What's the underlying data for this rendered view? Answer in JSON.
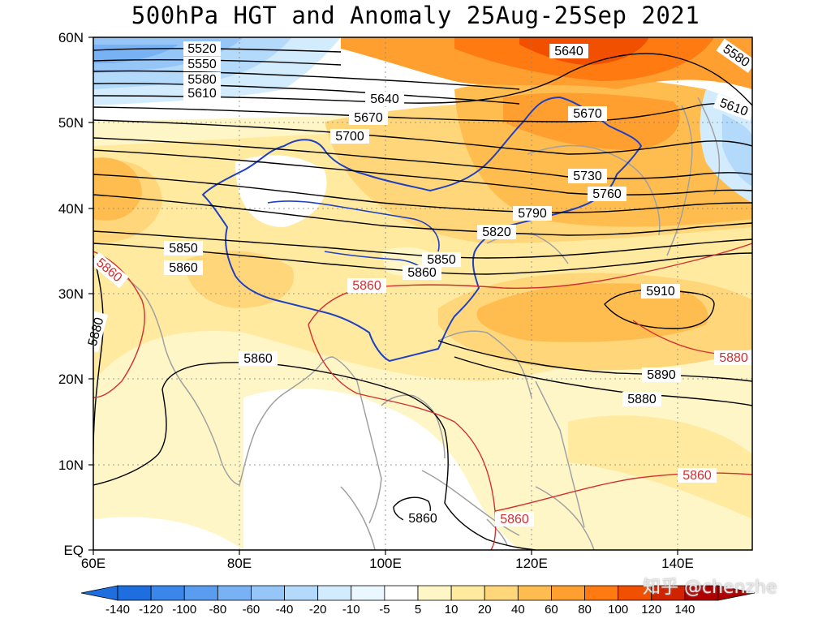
{
  "title": "500hPa HGT and Anomaly 25Aug-25Sep 2021",
  "watermark": "知乎 @chenzhe",
  "axes": {
    "lon_labels": [
      "60E",
      "80E",
      "100E",
      "120E",
      "140E"
    ],
    "lat_labels": [
      "60N",
      "50N",
      "40N",
      "30N",
      "20N",
      "10N",
      "EQ"
    ]
  },
  "colorbar": {
    "labels": [
      "-140",
      "-120",
      "-100",
      "-80",
      "-60",
      "-40",
      "-20",
      "-10",
      "-5",
      "5",
      "10",
      "20",
      "40",
      "60",
      "80",
      "100",
      "120",
      "140"
    ],
    "colors": [
      "#1e6ee0",
      "#3a86ea",
      "#5a9df0",
      "#78b2f4",
      "#96c6f8",
      "#b4dafb",
      "#d2ecfd",
      "#eaf7ff",
      "#ffffff",
      "#fff6c8",
      "#ffeaa0",
      "#ffd67a",
      "#ffbd50",
      "#ff9f30",
      "#ff7a10",
      "#f05000",
      "#d02400",
      "#b00000"
    ]
  },
  "contours_black": [
    "5520",
    "5550",
    "5580",
    "5610",
    "5640",
    "5670",
    "5700",
    "5730",
    "5760",
    "5790",
    "5820",
    "5850",
    "5860",
    "5880",
    "5890",
    "5910"
  ],
  "contour_labels": {
    "c5520": "5520",
    "c5550": "5550",
    "c5580a": "5580",
    "c5610a": "5610",
    "c5640a": "5640",
    "c5670a": "5670",
    "c5700": "5700",
    "c5640b": "5640",
    "c5670b": "5670",
    "c5730": "5730",
    "c5760": "5760",
    "c5790": "5790",
    "c5820": "5820",
    "c5850a": "5850",
    "c5860a": "5860",
    "c5850b": "5850",
    "c5860b": "5860",
    "c5860c": "5860",
    "c5880a": "5880",
    "c5910": "5910",
    "c5890": "5890",
    "c5880b": "5880",
    "c5860d": "5860",
    "c5580b": "5580",
    "c5610b": "5610",
    "r5860a": "5860",
    "r5860b": "5860",
    "r5880": "5880",
    "r5860c": "5860",
    "r5860d": "5860",
    "r5860e": "5860"
  },
  "legend_colors": {
    "climatology_contour": "#d03030",
    "current_contour": "#000000",
    "boundary": "#2040c0",
    "coast": "#a0a0a0"
  }
}
